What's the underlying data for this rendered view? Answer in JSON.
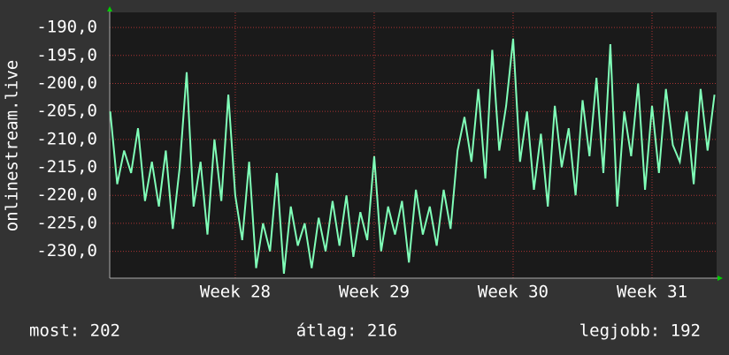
{
  "chart_data": {
    "type": "line",
    "y_label": "onlinestream.live",
    "footer": [
      "most: 202",
      "átlag: 216",
      "legjobb: 192"
    ],
    "xlim": [
      27.096,
      31.465
    ],
    "xticks": [
      {
        "value": 28,
        "label": "Week 28"
      },
      {
        "value": 29,
        "label": "Week 29"
      },
      {
        "value": 30,
        "label": "Week 30"
      },
      {
        "value": 31,
        "label": "Week 31"
      }
    ],
    "ylim": [
      -234.8,
      -187.3
    ],
    "yticks": [
      {
        "value": -190,
        "label": "-190,0"
      },
      {
        "value": -195,
        "label": "-195,0"
      },
      {
        "value": -200,
        "label": "-200,0"
      },
      {
        "value": -205,
        "label": "-205,0"
      },
      {
        "value": -210,
        "label": "-210,0"
      },
      {
        "value": -215,
        "label": "-215,0"
      },
      {
        "value": -220,
        "label": "-220,0"
      },
      {
        "value": -225,
        "label": "-225,0"
      },
      {
        "value": -230,
        "label": "-230,0"
      }
    ],
    "grid": true,
    "x": [
      27.1,
      27.15,
      27.2,
      27.25,
      27.3,
      27.35,
      27.4,
      27.45,
      27.5,
      27.55,
      27.6,
      27.65,
      27.7,
      27.75,
      27.8,
      27.85,
      27.9,
      27.95,
      28.0,
      28.05,
      28.1,
      28.15,
      28.2,
      28.25,
      28.3,
      28.35,
      28.4,
      28.45,
      28.5,
      28.55,
      28.6,
      28.65,
      28.7,
      28.75,
      28.8,
      28.85,
      28.9,
      28.95,
      29.0,
      29.05,
      29.1,
      29.15,
      29.2,
      29.25,
      29.3,
      29.35,
      29.4,
      29.45,
      29.5,
      29.55,
      29.6,
      29.65,
      29.7,
      29.75,
      29.8,
      29.85,
      29.9,
      29.95,
      30.0,
      30.05,
      30.1,
      30.15,
      30.2,
      30.25,
      30.3,
      30.35,
      30.4,
      30.45,
      30.5,
      30.55,
      30.6,
      30.65,
      30.7,
      30.75,
      30.8,
      30.85,
      30.9,
      30.95,
      31.0,
      31.05,
      31.1,
      31.15,
      31.2,
      31.25,
      31.3,
      31.35,
      31.4,
      31.45
    ],
    "series": [
      {
        "color": "#80ffb8",
        "values": [
          -205,
          -218,
          -212,
          -216,
          -208,
          -221,
          -214,
          -222,
          -212,
          -226,
          -215,
          -198,
          -222,
          -214,
          -227,
          -210,
          -221,
          -202,
          -220,
          -228,
          -214,
          -233,
          -225,
          -230,
          -216,
          -234,
          -222,
          -229,
          -225,
          -233,
          -224,
          -230,
          -221,
          -229,
          -220,
          -231,
          -223,
          -228,
          -213,
          -230,
          -222,
          -227,
          -221,
          -232,
          -219,
          -227,
          -222,
          -229,
          -219,
          -226,
          -212,
          -206,
          -214,
          -201,
          -217,
          -194,
          -212,
          -204,
          -192,
          -214,
          -205,
          -219,
          -209,
          -222,
          -204,
          -215,
          -208,
          -220,
          -203,
          -213,
          -199,
          -216,
          -193,
          -222,
          -205,
          -213,
          -200,
          -219,
          -204,
          -216,
          -201,
          -211,
          -214,
          -205,
          -218,
          -201,
          -212,
          -202
        ]
      }
    ]
  }
}
